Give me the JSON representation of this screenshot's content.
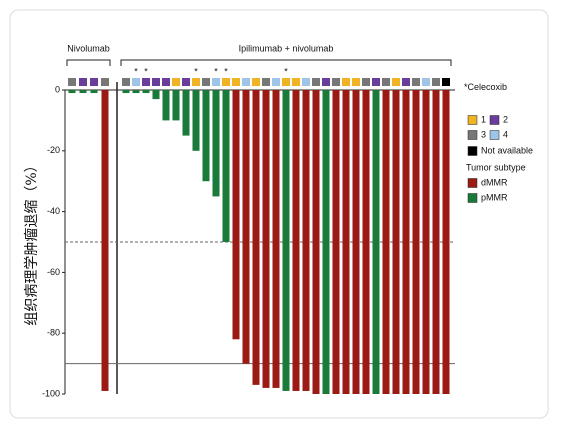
{
  "chart_data": {
    "type": "bar",
    "y_label": "组织病理学肿瘤退缩（%）",
    "ylim": [
      -100,
      0
    ],
    "yticks": [
      0,
      -20,
      -40,
      -60,
      -80,
      -100
    ],
    "reference_lines": [
      {
        "value": -50,
        "style": "dashed"
      },
      {
        "value": -90,
        "style": "solid"
      }
    ],
    "celecoxib_legend": {
      "marker": "*",
      "label": "Celecoxib"
    },
    "pdl1_legend": [
      {
        "label": "1",
        "color": "#f0b323"
      },
      {
        "label": "2",
        "color": "#6a3d9a"
      },
      {
        "label": "3",
        "color": "#777777"
      },
      {
        "label": "4",
        "color": "#9ec5e8"
      },
      {
        "label": "Not available",
        "color": "#000000"
      }
    ],
    "subtype_legend": {
      "title": "Tumor subtype",
      "items": [
        {
          "label": "dMMR",
          "color": "#9b1a14"
        },
        {
          "label": "pMMR",
          "color": "#1a7a3a"
        }
      ]
    },
    "groups": [
      {
        "name": "Nivolumab",
        "values": [
          -1,
          -1,
          -1,
          -99
        ],
        "subtype": [
          1,
          1,
          1,
          0
        ],
        "pdl1": [
          2,
          1,
          1,
          2
        ],
        "celecoxib": [
          false,
          false,
          false,
          false
        ]
      },
      {
        "name": "Ipilimumab + nivolumab",
        "values": [
          -1,
          -1,
          -1,
          -3,
          -10,
          -10,
          -15,
          -20,
          -30,
          -35,
          -50,
          -82,
          -90,
          -97,
          -98,
          -98,
          -99,
          -99,
          -99,
          -100,
          -100,
          -100,
          -100,
          -100,
          -100,
          -100,
          -100,
          -100,
          -100,
          -100,
          -100,
          -100,
          -100
        ],
        "subtype": [
          1,
          1,
          1,
          1,
          1,
          1,
          1,
          1,
          1,
          1,
          1,
          0,
          0,
          0,
          0,
          0,
          1,
          0,
          0,
          0,
          1,
          0,
          0,
          0,
          0,
          1,
          0,
          0,
          0,
          0,
          0,
          0,
          0
        ],
        "pdl1": [
          2,
          3,
          1,
          1,
          1,
          0,
          1,
          0,
          2,
          3,
          0,
          0,
          3,
          0,
          2,
          3,
          0,
          0,
          3,
          2,
          1,
          2,
          0,
          0,
          2,
          1,
          2,
          0,
          1,
          2,
          3,
          2,
          4
        ],
        "celecoxib": [
          false,
          true,
          true,
          false,
          false,
          false,
          false,
          true,
          false,
          true,
          true,
          false,
          false,
          false,
          false,
          false,
          true,
          false,
          false,
          false,
          false,
          false,
          false,
          false,
          false,
          false,
          false,
          false,
          false,
          false,
          false,
          false,
          false
        ]
      }
    ]
  }
}
